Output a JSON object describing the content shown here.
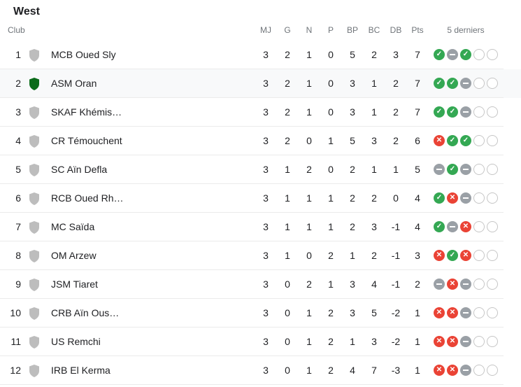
{
  "group_title": "West",
  "header": {
    "club": "Club",
    "mj": "MJ",
    "g": "G",
    "n": "N",
    "p": "P",
    "bp": "BP",
    "bc": "BC",
    "db": "DB",
    "pts": "Pts",
    "last5": "5 derniers"
  },
  "colors": {
    "win": "#34a853",
    "draw": "#9aa0a6",
    "loss": "#ea4335",
    "highlight_crest": "#0b6b1a",
    "default_crest": "#bdbdbd"
  },
  "rows": [
    {
      "rank": "1",
      "club": "MCB Oued Sly",
      "mj": "3",
      "g": "2",
      "n": "1",
      "p": "0",
      "bp": "5",
      "bc": "2",
      "db": "3",
      "pts": "7",
      "form": [
        "W",
        "D",
        "W",
        "N",
        "N"
      ],
      "crest": "gray-shield-icon"
    },
    {
      "rank": "2",
      "club": "ASM Oran",
      "mj": "3",
      "g": "2",
      "n": "1",
      "p": "0",
      "bp": "3",
      "bc": "1",
      "db": "2",
      "pts": "7",
      "form": [
        "W",
        "W",
        "D",
        "N",
        "N"
      ],
      "crest": "green-shield-icon",
      "highlight": true
    },
    {
      "rank": "3",
      "club": "SKAF Khémis…",
      "mj": "3",
      "g": "2",
      "n": "1",
      "p": "0",
      "bp": "3",
      "bc": "1",
      "db": "2",
      "pts": "7",
      "form": [
        "W",
        "W",
        "D",
        "N",
        "N"
      ],
      "crest": "gray-shield-icon"
    },
    {
      "rank": "4",
      "club": "CR Témouchent",
      "mj": "3",
      "g": "2",
      "n": "0",
      "p": "1",
      "bp": "5",
      "bc": "3",
      "db": "2",
      "pts": "6",
      "form": [
        "L",
        "W",
        "W",
        "N",
        "N"
      ],
      "crest": "gray-shield-icon"
    },
    {
      "rank": "5",
      "club": "SC Aïn Defla",
      "mj": "3",
      "g": "1",
      "n": "2",
      "p": "0",
      "bp": "2",
      "bc": "1",
      "db": "1",
      "pts": "5",
      "form": [
        "D",
        "W",
        "D",
        "N",
        "N"
      ],
      "crest": "gray-shield-icon"
    },
    {
      "rank": "6",
      "club": "RCB Oued Rh…",
      "mj": "3",
      "g": "1",
      "n": "1",
      "p": "1",
      "bp": "2",
      "bc": "2",
      "db": "0",
      "pts": "4",
      "form": [
        "W",
        "L",
        "D",
        "N",
        "N"
      ],
      "crest": "gray-shield-icon"
    },
    {
      "rank": "7",
      "club": "MC Saïda",
      "mj": "3",
      "g": "1",
      "n": "1",
      "p": "1",
      "bp": "2",
      "bc": "3",
      "db": "-1",
      "pts": "4",
      "form": [
        "W",
        "D",
        "L",
        "N",
        "N"
      ],
      "crest": "gray-shield-icon"
    },
    {
      "rank": "8",
      "club": "OM Arzew",
      "mj": "3",
      "g": "1",
      "n": "0",
      "p": "2",
      "bp": "1",
      "bc": "2",
      "db": "-1",
      "pts": "3",
      "form": [
        "L",
        "W",
        "L",
        "N",
        "N"
      ],
      "crest": "gray-shield-icon"
    },
    {
      "rank": "9",
      "club": "JSM Tiaret",
      "mj": "3",
      "g": "0",
      "n": "2",
      "p": "1",
      "bp": "3",
      "bc": "4",
      "db": "-1",
      "pts": "2",
      "form": [
        "D",
        "L",
        "D",
        "N",
        "N"
      ],
      "crest": "gray-shield-icon"
    },
    {
      "rank": "10",
      "club": "CRB Aïn Ous…",
      "mj": "3",
      "g": "0",
      "n": "1",
      "p": "2",
      "bp": "3",
      "bc": "5",
      "db": "-2",
      "pts": "1",
      "form": [
        "L",
        "L",
        "D",
        "N",
        "N"
      ],
      "crest": "gray-shield-icon"
    },
    {
      "rank": "11",
      "club": "US Remchi",
      "mj": "3",
      "g": "0",
      "n": "1",
      "p": "2",
      "bp": "1",
      "bc": "3",
      "db": "-2",
      "pts": "1",
      "form": [
        "L",
        "L",
        "D",
        "N",
        "N"
      ],
      "crest": "gray-shield-icon"
    },
    {
      "rank": "12",
      "club": "IRB El Kerma",
      "mj": "3",
      "g": "0",
      "n": "1",
      "p": "2",
      "bp": "4",
      "bc": "7",
      "db": "-3",
      "pts": "1",
      "form": [
        "L",
        "L",
        "D",
        "N",
        "N"
      ],
      "crest": "gray-shield-icon"
    }
  ]
}
